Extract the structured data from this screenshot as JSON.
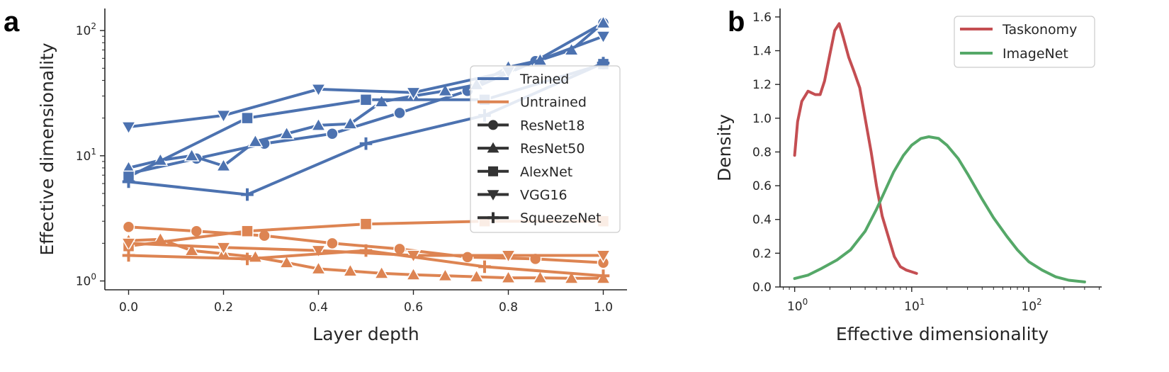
{
  "panels": {
    "a": "a",
    "b": "b"
  },
  "colors": {
    "trained": "#4c72b0",
    "untrained": "#dd8452",
    "taskonomy": "#c44e52",
    "imagenet": "#55a868",
    "legend_marker": "#333333"
  },
  "chart_data": [
    {
      "type": "line",
      "panel": "a",
      "xlabel": "Layer depth",
      "ylabel": "Effective dimensionality",
      "xlim": [
        -0.05,
        1.05
      ],
      "ylim": [
        0.85,
        150
      ],
      "yscale": "log",
      "x_ticks": [
        "0.0",
        "0.2",
        "0.4",
        "0.6",
        "0.8",
        "1.0"
      ],
      "y_ticks": [
        {
          "base": "10",
          "exp": "0"
        },
        {
          "base": "10",
          "exp": "1"
        },
        {
          "base": "10",
          "exp": "2"
        }
      ],
      "legend": {
        "position": "center-right",
        "colors": [
          "Trained",
          "Untrained"
        ],
        "models": [
          "ResNet18",
          "ResNet50",
          "AlexNet",
          "VGG16",
          "SqueezeNet"
        ]
      },
      "series": [
        {
          "model": "ResNet18",
          "group": "Trained",
          "marker": "circle",
          "x": [
            0,
            0.143,
            0.286,
            0.429,
            0.571,
            0.714,
            0.857,
            1.0
          ],
          "y": [
            7.2,
            9.5,
            12.5,
            15,
            22,
            33,
            57,
            115
          ]
        },
        {
          "model": "ResNet50",
          "group": "Trained",
          "marker": "triangle-up",
          "x": [
            0,
            0.067,
            0.133,
            0.2,
            0.267,
            0.333,
            0.4,
            0.467,
            0.533,
            0.6,
            0.667,
            0.733,
            0.8,
            0.867,
            0.933,
            1.0
          ],
          "y": [
            8,
            9.2,
            10,
            8.3,
            13,
            15,
            17.5,
            18,
            27,
            30,
            33,
            37,
            51,
            58,
            70,
            115
          ]
        },
        {
          "model": "AlexNet",
          "group": "Trained",
          "marker": "square",
          "x": [
            0,
            0.25,
            0.5,
            0.75,
            1.0
          ],
          "y": [
            6.8,
            20,
            28,
            28,
            54
          ]
        },
        {
          "model": "VGG16",
          "group": "Trained",
          "marker": "triangle-down",
          "x": [
            0,
            0.2,
            0.4,
            0.6,
            0.8,
            1.0
          ],
          "y": [
            17,
            21,
            34,
            32,
            47,
            90
          ]
        },
        {
          "model": "SqueezeNet",
          "group": "Trained",
          "marker": "plus",
          "x": [
            0,
            0.25,
            0.5,
            0.75,
            1.0
          ],
          "y": [
            6.2,
            4.9,
            12.5,
            21,
            55
          ]
        },
        {
          "model": "ResNet18",
          "group": "Untrained",
          "marker": "circle",
          "x": [
            0,
            0.143,
            0.286,
            0.429,
            0.571,
            0.714,
            0.857,
            1.0
          ],
          "y": [
            2.7,
            2.5,
            2.3,
            2.0,
            1.8,
            1.55,
            1.5,
            1.4
          ]
        },
        {
          "model": "ResNet50",
          "group": "Untrained",
          "marker": "triangle-up",
          "x": [
            0,
            0.067,
            0.133,
            0.2,
            0.267,
            0.333,
            0.4,
            0.467,
            0.533,
            0.6,
            0.667,
            0.733,
            0.8,
            0.867,
            0.933,
            1.0
          ],
          "y": [
            2.1,
            2.15,
            1.75,
            1.65,
            1.55,
            1.4,
            1.25,
            1.2,
            1.15,
            1.12,
            1.1,
            1.08,
            1.06,
            1.06,
            1.05,
            1.05
          ]
        },
        {
          "model": "AlexNet",
          "group": "Untrained",
          "marker": "square",
          "x": [
            0,
            0.25,
            0.5,
            0.75,
            1.0
          ],
          "y": [
            1.9,
            2.5,
            2.85,
            3.0,
            3.0
          ]
        },
        {
          "model": "VGG16",
          "group": "Untrained",
          "marker": "triangle-down",
          "x": [
            0,
            0.2,
            0.4,
            0.6,
            0.8,
            1.0
          ],
          "y": [
            2.0,
            1.85,
            1.75,
            1.6,
            1.6,
            1.6
          ]
        },
        {
          "model": "SqueezeNet",
          "group": "Untrained",
          "marker": "plus",
          "x": [
            0,
            0.25,
            0.5,
            0.75,
            1.0
          ],
          "y": [
            1.6,
            1.5,
            1.75,
            1.3,
            1.1
          ]
        }
      ]
    },
    {
      "type": "line",
      "panel": "b",
      "xlabel": "Effective dimensionality",
      "ylabel": "Density",
      "xscale": "log",
      "xlim": [
        0.75,
        420
      ],
      "ylim": [
        0,
        1.65
      ],
      "x_ticks": [
        {
          "base": "10",
          "exp": "0"
        },
        {
          "base": "10",
          "exp": "1"
        },
        {
          "base": "10",
          "exp": "2"
        }
      ],
      "y_ticks": [
        "0.0",
        "0.2",
        "0.4",
        "0.6",
        "0.8",
        "1.0",
        "1.2",
        "1.4",
        "1.6"
      ],
      "legend": {
        "position": "top-right"
      },
      "series": [
        {
          "name": "Taskonomy",
          "x": [
            1.0,
            1.06,
            1.15,
            1.3,
            1.5,
            1.65,
            1.8,
            2.0,
            2.2,
            2.4,
            2.6,
            2.9,
            3.2,
            3.6,
            4.0,
            4.5,
            5.0,
            5.6,
            6.3,
            7.1,
            8.0,
            9.0,
            10.0,
            11.0
          ],
          "y": [
            0.78,
            0.98,
            1.1,
            1.16,
            1.14,
            1.14,
            1.22,
            1.38,
            1.52,
            1.56,
            1.48,
            1.36,
            1.28,
            1.18,
            1.0,
            0.8,
            0.6,
            0.42,
            0.3,
            0.18,
            0.12,
            0.1,
            0.09,
            0.08
          ]
        },
        {
          "name": "ImageNet",
          "x": [
            1.0,
            1.3,
            1.7,
            2.3,
            3.0,
            4.0,
            5.0,
            6.0,
            7.0,
            8.5,
            10.0,
            12.0,
            14.0,
            17.0,
            20.0,
            25.0,
            30.0,
            40.0,
            50.0,
            65.0,
            80.0,
            100.0,
            130.0,
            170.0,
            220.0,
            300.0
          ],
          "y": [
            0.05,
            0.07,
            0.11,
            0.16,
            0.22,
            0.33,
            0.46,
            0.58,
            0.68,
            0.78,
            0.84,
            0.88,
            0.89,
            0.88,
            0.84,
            0.76,
            0.67,
            0.52,
            0.41,
            0.3,
            0.22,
            0.15,
            0.1,
            0.06,
            0.04,
            0.03
          ]
        }
      ]
    }
  ]
}
